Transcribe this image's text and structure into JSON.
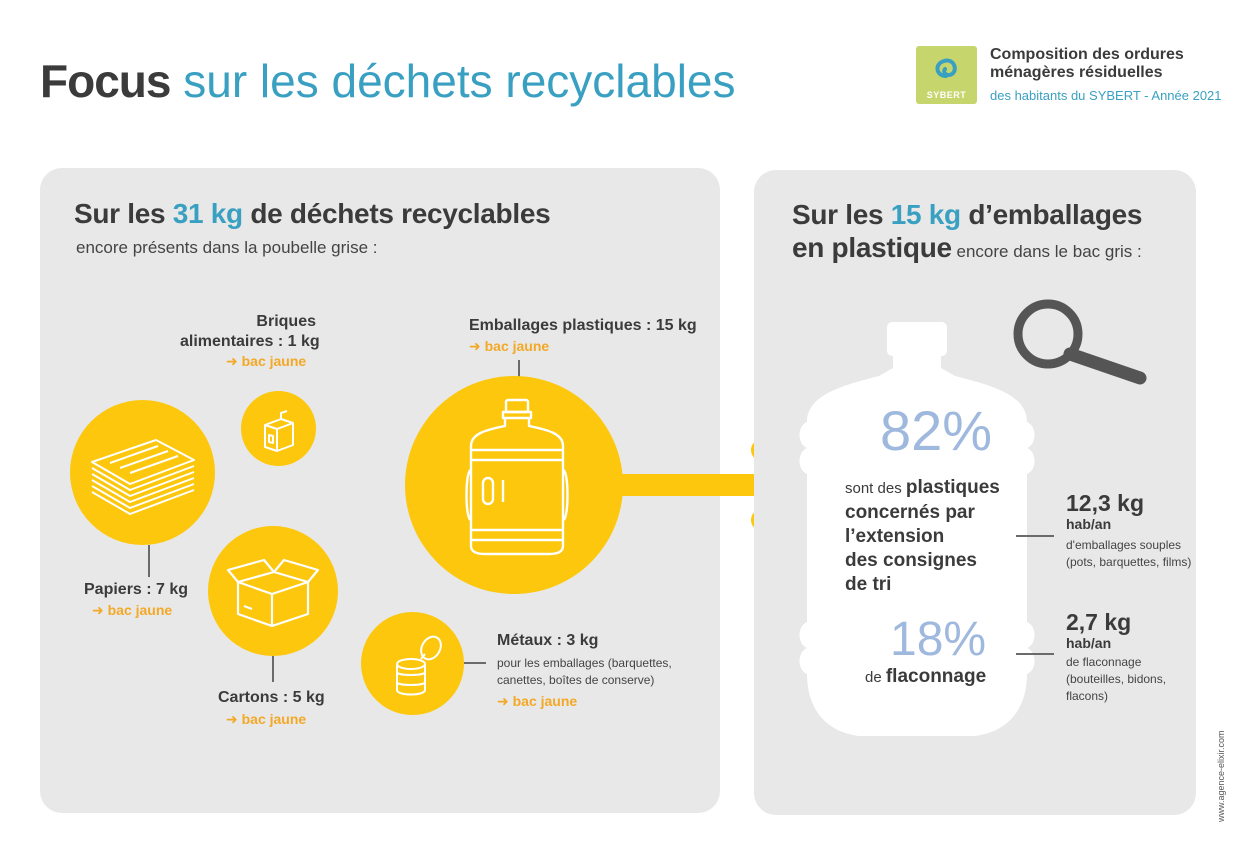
{
  "title": {
    "part1": "Focus",
    "part2": "sur les déchets recyclables"
  },
  "header": {
    "logo_text": "SYBERT",
    "line1": "Composition des ordures",
    "line2": "ménagères résiduelles",
    "line3": "des habitants du SYBERT - Année 2021"
  },
  "left_panel": {
    "heading_pre": "Sur les ",
    "heading_value": "31 kg",
    "heading_post": " de déchets recyclables",
    "subheading": "encore présents dans la poubelle grise :",
    "items": [
      {
        "label_line1": "Briques",
        "label_line2": "alimentaires : 1 kg",
        "destination": "➜ bac jaune",
        "icon": "carton-brick-icon"
      },
      {
        "label": "Emballages plastiques : 15 kg",
        "destination": "➜ bac jaune",
        "icon": "plastic-bottle-icon"
      },
      {
        "label": "Papiers : 7 kg",
        "destination": "➜ bac jaune",
        "icon": "paper-stack-icon"
      },
      {
        "label": "Cartons : 5 kg",
        "destination": "➜ bac jaune",
        "icon": "open-box-icon"
      },
      {
        "label": "Métaux : 3 kg",
        "detail_line1": "pour les emballages (barquettes,",
        "detail_line2": "canettes, boîtes de conserve)",
        "destination": "➜ bac jaune",
        "icon": "tin-can-icon"
      }
    ]
  },
  "right_panel": {
    "heading_pre": "Sur les ",
    "heading_value": "15 kg",
    "heading_post": " d’emballages",
    "heading_line2": "en plastique",
    "heading_line2_post": " encore dans le bac gris  :",
    "stat1": {
      "percent": "82%",
      "pre": "sont des ",
      "bold1": "plastiques",
      "bold2": "concernés par",
      "bold3": "l’extension",
      "bold4": "des consignes",
      "bold5": "de tri",
      "kg": "12,3 kg",
      "unit": "hab/an",
      "detail1": "d'emballages souples",
      "detail2": "(pots, barquettes, films)"
    },
    "stat2": {
      "percent": "18%",
      "pre": "de ",
      "bold": "flaconnage",
      "kg": "2,7 kg",
      "unit": "hab/an",
      "detail1": "de flaconnage",
      "detail2": "(bouteilles, bidons,",
      "detail3": "flacons)"
    }
  },
  "credit": "www.agence-elixir.com",
  "colors": {
    "yellow": "#fcc70c",
    "blue": "#3aa0c2",
    "orange": "#f3a826",
    "panel": "#e8e8e8",
    "light_blue": "#9fb9de"
  }
}
